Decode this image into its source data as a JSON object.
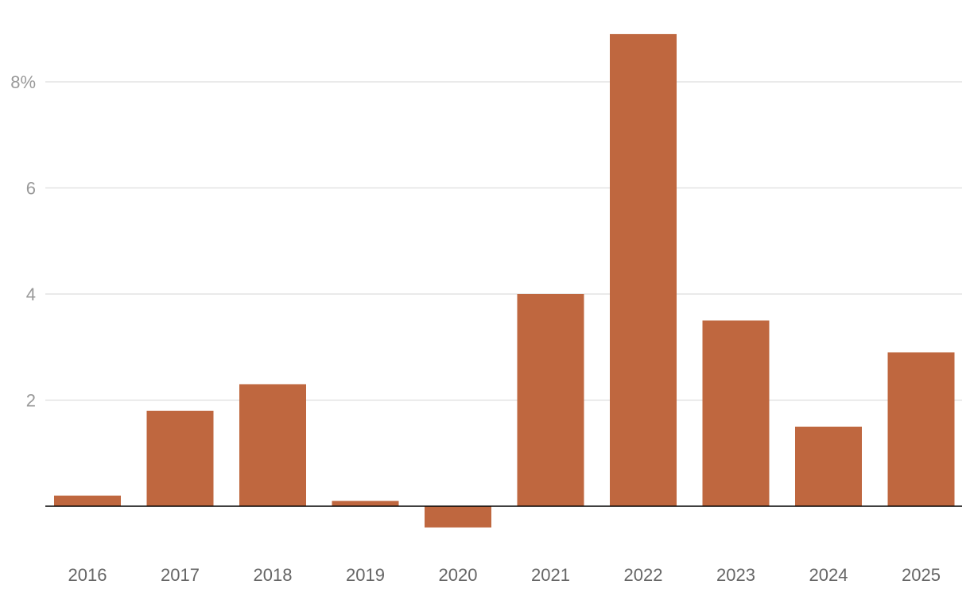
{
  "chart_data": {
    "type": "bar",
    "title": "",
    "xlabel": "",
    "ylabel": "",
    "categories": [
      "2016",
      "2017",
      "2018",
      "2019",
      "2020",
      "2021",
      "2022",
      "2023",
      "2024",
      "2025"
    ],
    "values": [
      0.2,
      1.8,
      2.3,
      0.1,
      -0.4,
      4.0,
      8.9,
      3.5,
      1.5,
      2.9
    ],
    "ylim": [
      -0.4,
      9.0
    ],
    "y_ticks": [
      2,
      4,
      6,
      8
    ],
    "y_tick_labels": [
      "2",
      "4",
      "6",
      "8%"
    ],
    "grid": true,
    "legend": "none",
    "colors": {
      "bar": "#BF673F",
      "grid": "#DDDDDD",
      "zero_line": "#000000",
      "tick_y": "#999999",
      "tick_x": "#666666"
    }
  }
}
